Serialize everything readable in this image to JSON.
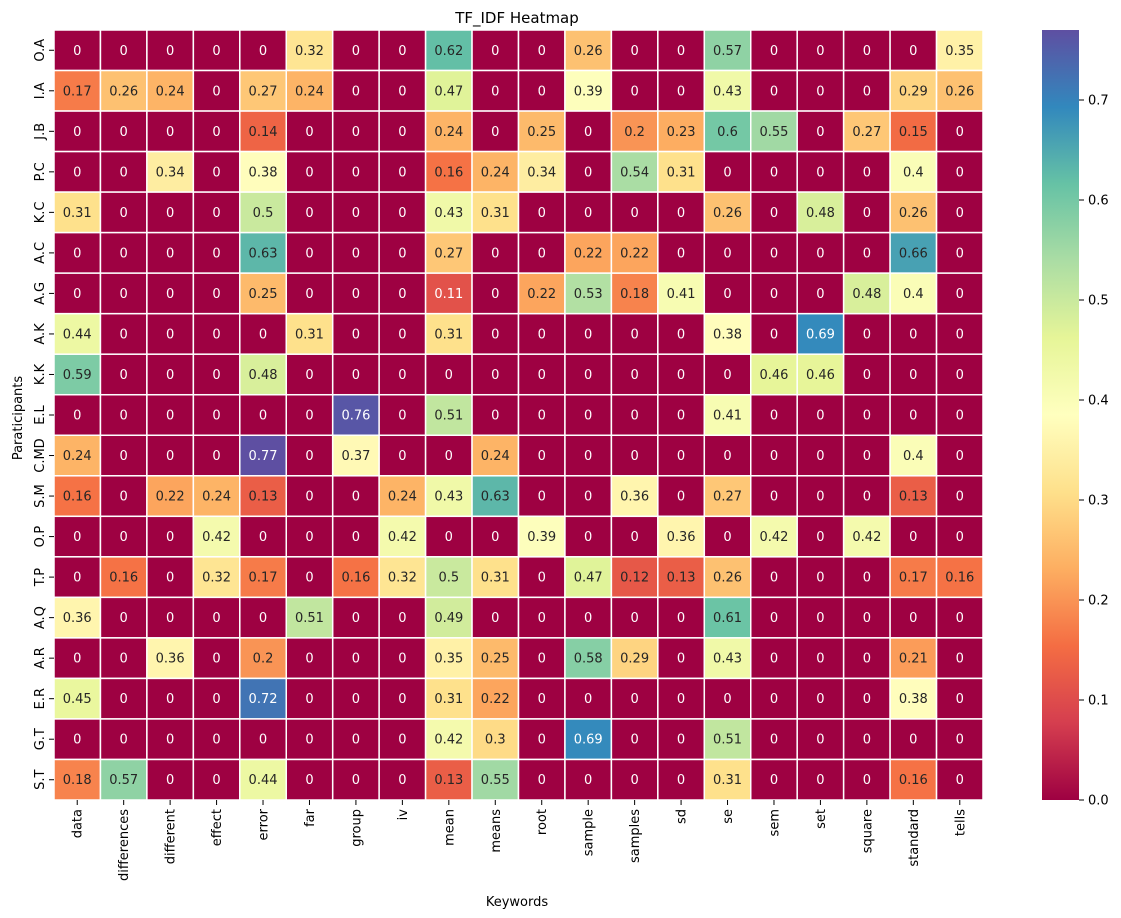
{
  "chart_data": {
    "type": "heatmap",
    "title": "TF_IDF Heatmap",
    "xlabel": "Keywords",
    "ylabel": "Paraticipants",
    "x": [
      "data",
      "differences",
      "different",
      "effect",
      "error",
      "far",
      "group",
      "iv",
      "mean",
      "means",
      "root",
      "sample",
      "samples",
      "sd",
      "se",
      "sem",
      "set",
      "square",
      "standard",
      "tells"
    ],
    "y": [
      "O.A",
      "I.A",
      "J.B",
      "P.C",
      "K.C",
      "A.C",
      "A.G",
      "A.K",
      "K.K",
      "E.L",
      "C.MD",
      "S.M",
      "O.P",
      "T.P",
      "A.Q",
      "A.R",
      "E.R",
      "G.T",
      "S.T"
    ],
    "values": [
      [
        0,
        0,
        0,
        0,
        0,
        0.32,
        0,
        0,
        0.62,
        0,
        0,
        0.26,
        0,
        0,
        0.57,
        0,
        0,
        0,
        0,
        0.35
      ],
      [
        0.17,
        0.26,
        0.24,
        0,
        0.27,
        0.24,
        0,
        0,
        0.47,
        0,
        0,
        0.39,
        0,
        0,
        0.43,
        0,
        0,
        0,
        0.29,
        0.26
      ],
      [
        0,
        0,
        0,
        0,
        0.14,
        0,
        0,
        0,
        0.24,
        0,
        0.25,
        0,
        0.2,
        0.23,
        0.6,
        0.55,
        0,
        0.27,
        0.15,
        0
      ],
      [
        0,
        0,
        0.34,
        0,
        0.38,
        0,
        0,
        0,
        0.16,
        0.24,
        0.34,
        0,
        0.54,
        0.31,
        0,
        0,
        0,
        0,
        0.4,
        0
      ],
      [
        0.31,
        0,
        0,
        0,
        0.5,
        0,
        0,
        0,
        0.43,
        0.31,
        0,
        0,
        0,
        0,
        0.26,
        0,
        0.48,
        0,
        0.26,
        0
      ],
      [
        0,
        0,
        0,
        0,
        0.63,
        0,
        0,
        0,
        0.27,
        0,
        0,
        0.22,
        0.22,
        0,
        0,
        0,
        0,
        0,
        0.66,
        0
      ],
      [
        0,
        0,
        0,
        0,
        0.25,
        0,
        0,
        0,
        0.11,
        0,
        0.22,
        0.53,
        0.18,
        0.41,
        0,
        0,
        0,
        0.48,
        0.4,
        0
      ],
      [
        0.44,
        0,
        0,
        0,
        0,
        0.31,
        0,
        0,
        0.31,
        0,
        0,
        0,
        0,
        0,
        0.38,
        0,
        0.69,
        0,
        0,
        0
      ],
      [
        0.59,
        0,
        0,
        0,
        0.48,
        0,
        0,
        0,
        0,
        0,
        0,
        0,
        0,
        0,
        0,
        0.46,
        0.46,
        0,
        0,
        0
      ],
      [
        0,
        0,
        0,
        0,
        0,
        0,
        0.76,
        0,
        0.51,
        0,
        0,
        0,
        0,
        0,
        0.41,
        0,
        0,
        0,
        0,
        0
      ],
      [
        0.24,
        0,
        0,
        0,
        0.77,
        0,
        0.37,
        0,
        0,
        0.24,
        0,
        0,
        0,
        0,
        0,
        0,
        0,
        0,
        0.4,
        0
      ],
      [
        0.16,
        0,
        0.22,
        0.24,
        0.13,
        0,
        0,
        0.24,
        0.43,
        0.63,
        0,
        0,
        0.36,
        0,
        0.27,
        0,
        0,
        0,
        0.13,
        0
      ],
      [
        0,
        0,
        0,
        0.42,
        0,
        0,
        0,
        0.42,
        0,
        0,
        0.39,
        0,
        0,
        0.36,
        0,
        0.42,
        0,
        0.42,
        0,
        0
      ],
      [
        0,
        0.16,
        0,
        0.32,
        0.17,
        0,
        0.16,
        0.32,
        0.5,
        0.31,
        0,
        0.47,
        0.12,
        0.13,
        0.26,
        0,
        0,
        0,
        0.17,
        0.16
      ],
      [
        0.36,
        0,
        0,
        0,
        0,
        0.51,
        0,
        0,
        0.49,
        0,
        0,
        0,
        0,
        0,
        0.61,
        0,
        0,
        0,
        0,
        0
      ],
      [
        0,
        0,
        0.36,
        0,
        0.2,
        0,
        0,
        0,
        0.35,
        0.25,
        0,
        0.58,
        0.29,
        0,
        0.43,
        0,
        0,
        0,
        0.21,
        0
      ],
      [
        0.45,
        0,
        0,
        0,
        0.72,
        0,
        0,
        0,
        0.31,
        0.22,
        0,
        0,
        0,
        0,
        0,
        0,
        0,
        0,
        0.38,
        0
      ],
      [
        0,
        0,
        0,
        0,
        0,
        0,
        0,
        0,
        0.42,
        0.3,
        0,
        0.69,
        0,
        0,
        0.51,
        0,
        0,
        0,
        0,
        0
      ],
      [
        0.18,
        0.57,
        0,
        0,
        0.44,
        0,
        0,
        0,
        0.13,
        0.55,
        0,
        0,
        0,
        0,
        0.31,
        0,
        0,
        0,
        0.16,
        0
      ]
    ],
    "colormap": "Spectral",
    "colorbar": {
      "range": [
        0,
        0.77
      ],
      "ticks": [
        0.0,
        0.1,
        0.2,
        0.3,
        0.4,
        0.5,
        0.6,
        0.7
      ],
      "tick_labels": [
        "0.0",
        "0.1",
        "0.2",
        "0.3",
        "0.4",
        "0.5",
        "0.6",
        "0.7"
      ]
    },
    "annotations": true,
    "cell_border_color": "#ffffff"
  }
}
